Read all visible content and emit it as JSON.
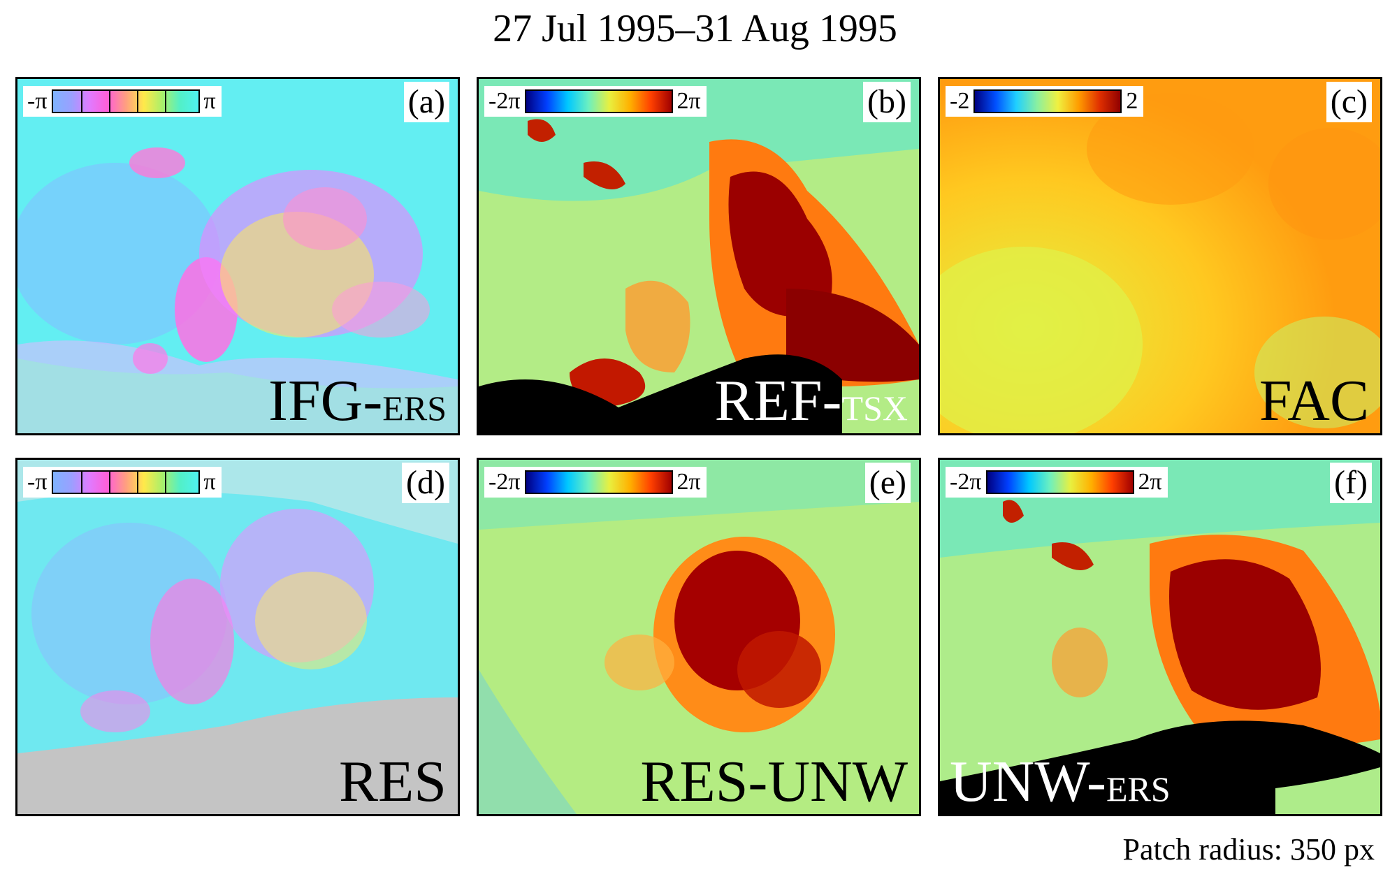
{
  "figure": {
    "title": "27 Jul 1995–31 Aug 1995",
    "caption": "Patch radius: 350 px"
  },
  "colorbars": {
    "wrapped": {
      "min": "-π",
      "max": "π"
    },
    "radians": {
      "min": "-2π",
      "max": "2π"
    },
    "units": {
      "min": "-2",
      "max": "2"
    }
  },
  "panels": [
    {
      "letter": "(a)",
      "label_main": "IFG-",
      "label_sub": "ERS",
      "colorbar": "wrapped"
    },
    {
      "letter": "(b)",
      "label_main": "REF-",
      "label_sub": "TSX",
      "colorbar": "radians"
    },
    {
      "letter": "(c)",
      "label_main": "FAC",
      "label_sub": "",
      "colorbar": "units"
    },
    {
      "letter": "(d)",
      "label_main": "RES",
      "label_sub": "",
      "colorbar": "wrapped"
    },
    {
      "letter": "(e)",
      "label_main": "RES-UNW",
      "label_sub": "",
      "colorbar": "radians"
    },
    {
      "letter": "(f)",
      "label_main": "UNW-",
      "label_sub": "ERS",
      "colorbar": "radians"
    }
  ],
  "colors": {
    "cyan": "#5ef0f0",
    "magenta": "#ff6fe0",
    "dark_red": "#8b0000",
    "orange": "#ff9a00",
    "yellow": "#f0f040",
    "black": "#000000",
    "gray": "#c0c0c0"
  }
}
